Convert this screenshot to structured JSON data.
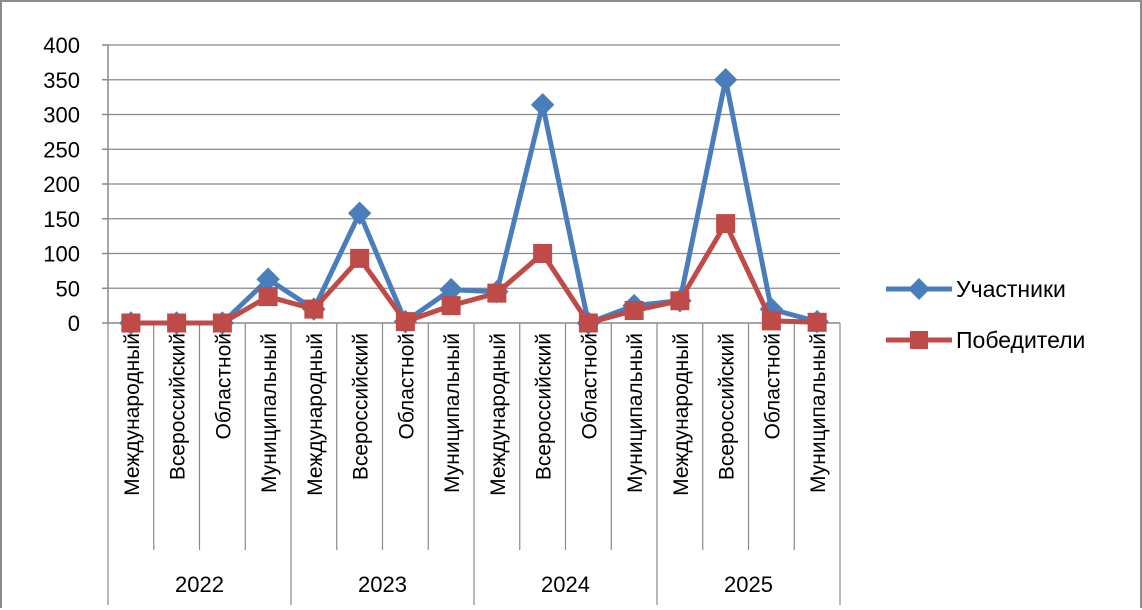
{
  "chart_data": {
    "type": "line",
    "title": "",
    "xlabel": "",
    "ylabel": "",
    "ylim": [
      0,
      400
    ],
    "yticks": [
      "400",
      "350",
      "300",
      "250",
      "200",
      "150",
      "100",
      "50",
      "0"
    ],
    "grid": true,
    "legend_position": "right",
    "groups": [
      "2022",
      "2023",
      "2024",
      "2025"
    ],
    "categories": [
      "Международный",
      "Всероссийский",
      "Областной",
      "Муниципальный",
      "Международный",
      "Всероссийский",
      "Областной",
      "Муниципальный",
      "Международный",
      "Всероссийский",
      "Областной",
      "Муниципальный",
      "Международный",
      "Всероссийский",
      "Областной",
      "Муниципальный"
    ],
    "series": [
      {
        "name": "Участники",
        "color": "#4a7ebb",
        "marker": "diamond",
        "values": [
          0,
          0,
          0,
          63,
          20,
          158,
          2,
          48,
          45,
          314,
          0,
          25,
          32,
          350,
          20,
          2
        ]
      },
      {
        "name": "Победители",
        "color": "#be4b48",
        "marker": "square",
        "values": [
          0,
          0,
          0,
          38,
          20,
          93,
          2,
          25,
          43,
          100,
          0,
          18,
          32,
          143,
          3,
          1
        ]
      }
    ]
  }
}
